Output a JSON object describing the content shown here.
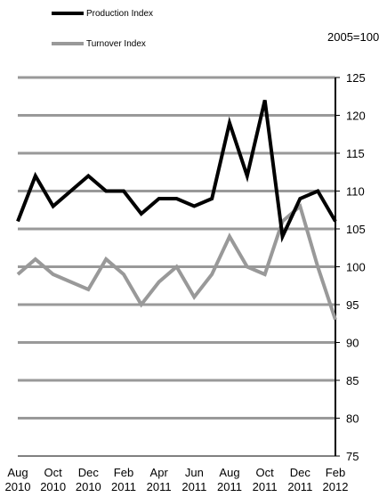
{
  "chart_data": {
    "type": "line",
    "annotation": "2005=100",
    "x": [
      "Aug 2010",
      "Sep 2010",
      "Oct 2010",
      "Nov 2010",
      "Dec 2010",
      "Jan 2011",
      "Feb 2011",
      "Mar 2011",
      "Apr 2011",
      "May 2011",
      "Jun 2011",
      "Jul 2011",
      "Aug 2011",
      "Sep 2011",
      "Oct 2011",
      "Nov 2011",
      "Dec 2011",
      "Jan 2012",
      "Feb 2012"
    ],
    "x_tick_labels": [
      [
        "Aug",
        "2010"
      ],
      [
        "Oct",
        "2010"
      ],
      [
        "Dec",
        "2010"
      ],
      [
        "Feb",
        "2011"
      ],
      [
        "Apr",
        "2011"
      ],
      [
        "Jun",
        "2011"
      ],
      [
        "Aug",
        "2011"
      ],
      [
        "Oct",
        "2011"
      ],
      [
        "Dec",
        "2011"
      ],
      [
        "Feb",
        "2012"
      ]
    ],
    "y_ticks": [
      75,
      80,
      85,
      90,
      95,
      100,
      105,
      110,
      115,
      120,
      125
    ],
    "ylim": [
      75,
      125
    ],
    "y_axis_position": "right",
    "grid": "horizontal",
    "legend_position": "top",
    "series": [
      {
        "name": "Production Index",
        "color": "#000000",
        "values": [
          106,
          112,
          108,
          110,
          112,
          110,
          110,
          107,
          109,
          109,
          108,
          109,
          119,
          112,
          122,
          104,
          109,
          110,
          106
        ]
      },
      {
        "name": "Turnover Index",
        "color": "#999999",
        "values": [
          99,
          101,
          99,
          98,
          97,
          101,
          99,
          95,
          98,
          100,
          96,
          99,
          104,
          100,
          99,
          106,
          108,
          100,
          93
        ]
      }
    ]
  }
}
